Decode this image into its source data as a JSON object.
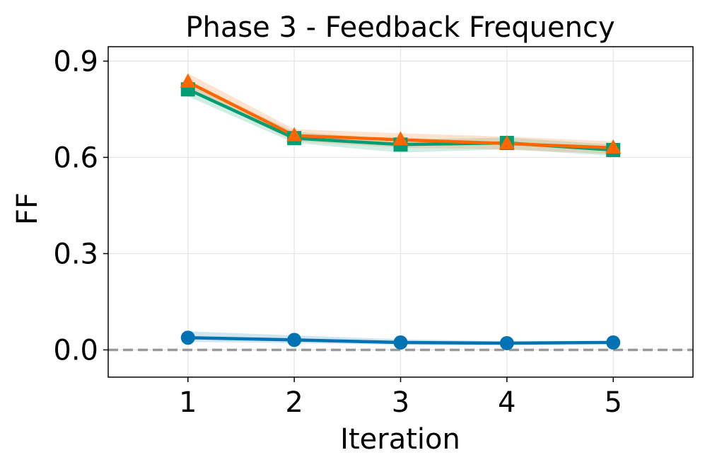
{
  "chart_data": {
    "type": "line",
    "title": "Phase 3 - Feedback Frequency",
    "xlabel": "Iteration",
    "ylabel": "FF",
    "x": [
      1,
      2,
      3,
      4,
      5
    ],
    "xlim": [
      0.25,
      5.75
    ],
    "ylim": [
      -0.085,
      0.945
    ],
    "xticks": [
      "1",
      "2",
      "3",
      "4",
      "5"
    ],
    "yticks": [
      {
        "value": 0.0,
        "label": "0.0"
      },
      {
        "value": 0.3,
        "label": "0.3"
      },
      {
        "value": 0.6,
        "label": "0.6"
      },
      {
        "value": 0.9,
        "label": "0.9"
      }
    ],
    "grid": true,
    "reference_line": {
      "y": 0.0,
      "style": "dashed",
      "color": "#999999"
    },
    "series": [
      {
        "color": "#0173b2",
        "marker": "circle",
        "values": [
          0.038,
          0.031,
          0.023,
          0.021,
          0.023
        ],
        "band_upper": [
          0.058,
          0.045,
          0.033,
          0.027,
          0.029
        ],
        "band_lower": [
          0.025,
          0.021,
          0.016,
          0.016,
          0.018
        ]
      },
      {
        "color": "#029e73",
        "marker": "square",
        "values": [
          0.812,
          0.66,
          0.64,
          0.645,
          0.623
        ],
        "band_upper": [
          0.835,
          0.68,
          0.655,
          0.662,
          0.64
        ],
        "band_lower": [
          0.79,
          0.645,
          0.615,
          0.625,
          0.605
        ]
      },
      {
        "color": "#ff6600",
        "marker": "triangle",
        "values": [
          0.835,
          0.668,
          0.655,
          0.643,
          0.63
        ],
        "band_upper": [
          0.862,
          0.688,
          0.675,
          0.665,
          0.65
        ],
        "band_lower": [
          0.81,
          0.65,
          0.63,
          0.625,
          0.61
        ]
      }
    ]
  }
}
